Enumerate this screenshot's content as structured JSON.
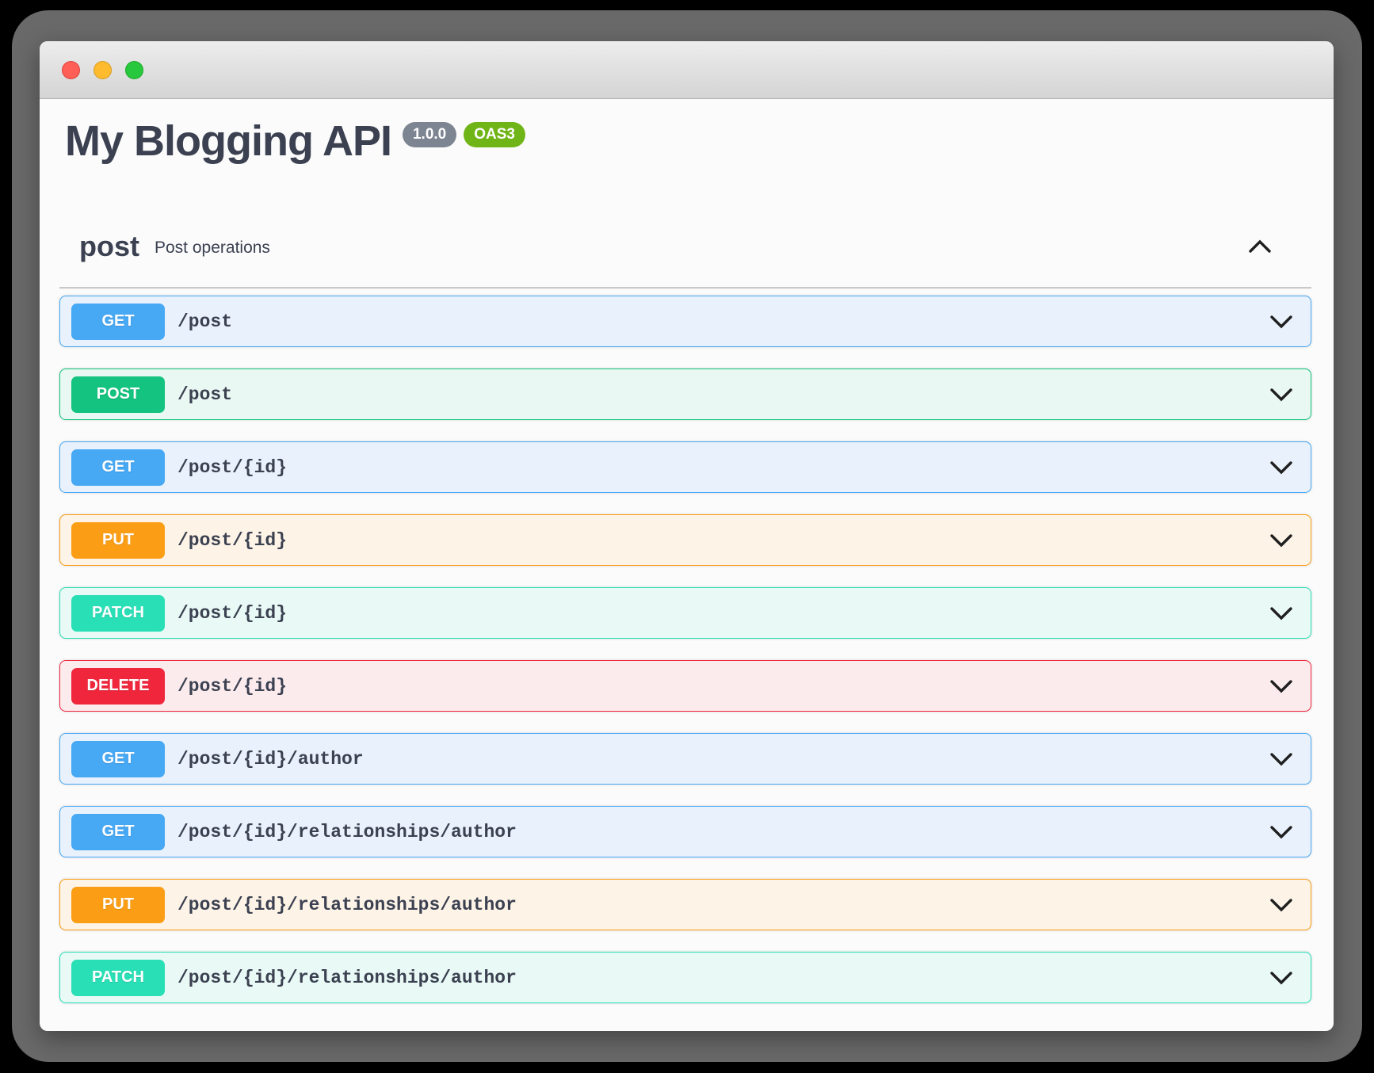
{
  "header": {
    "title": "My Blogging API",
    "version_badge": "1.0.0",
    "oas_badge": "OAS3"
  },
  "section": {
    "name": "post",
    "description": "Post operations",
    "collapse_icon": "chevron-up"
  },
  "endpoints": [
    {
      "method": "GET",
      "path": "/post"
    },
    {
      "method": "POST",
      "path": "/post"
    },
    {
      "method": "GET",
      "path": "/post/{id}"
    },
    {
      "method": "PUT",
      "path": "/post/{id}"
    },
    {
      "method": "PATCH",
      "path": "/post/{id}"
    },
    {
      "method": "DELETE",
      "path": "/post/{id}"
    },
    {
      "method": "GET",
      "path": "/post/{id}/author"
    },
    {
      "method": "GET",
      "path": "/post/{id}/relationships/author"
    },
    {
      "method": "PUT",
      "path": "/post/{id}/relationships/author"
    },
    {
      "method": "PATCH",
      "path": "/post/{id}/relationships/author"
    }
  ],
  "method_colors": {
    "GET": {
      "accent": "#47a8f4",
      "bg": "#e9f2fc"
    },
    "POST": {
      "accent": "#13c37f",
      "bg": "#e9f8f2"
    },
    "PUT": {
      "accent": "#fb9e16",
      "bg": "#fdf3e6"
    },
    "PATCH": {
      "accent": "#29dfb6",
      "bg": "#e9faf6"
    },
    "DELETE": {
      "accent": "#f0263c",
      "bg": "#fcebed"
    }
  },
  "badge_colors": {
    "version_bg": "#7d8492",
    "oas_bg": "#70b517"
  },
  "text_color": "#3b4151"
}
